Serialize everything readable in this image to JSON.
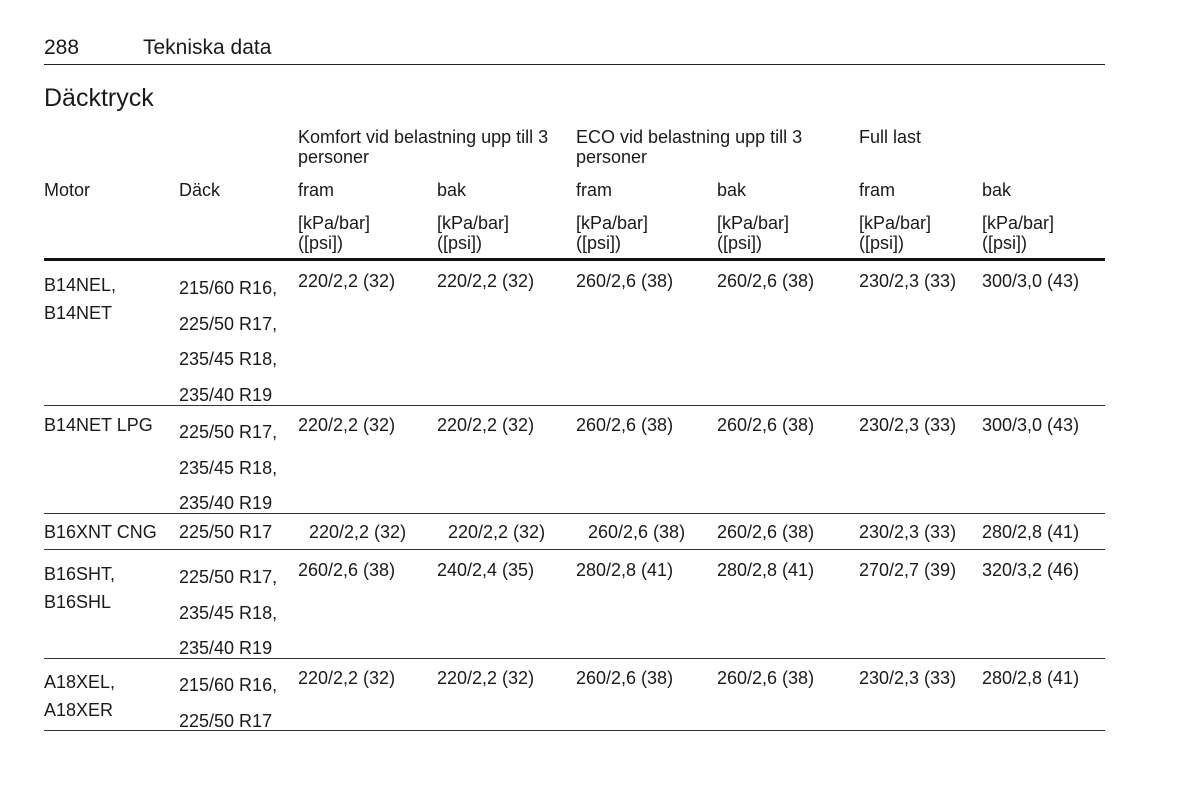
{
  "page": {
    "number": "288",
    "section": "Tekniska data"
  },
  "title": "Däcktryck",
  "table": {
    "groups": [
      "Komfort vid belastning upp till 3 personer",
      "ECO vid belastning upp till 3 personer",
      "Full last"
    ],
    "col_motor": "Motor",
    "col_tyre": "Däck",
    "front": "fram",
    "rear": "bak",
    "unit_line1": "[kPa/bar]",
    "unit_line2": "([psi])",
    "rows": [
      {
        "motor": [
          "B14NEL,",
          "B14NET"
        ],
        "tyres": [
          "215/60 R16,",
          "225/50 R17,",
          "235/45 R18,",
          "235/40 R19"
        ],
        "values": [
          "220/2,2 (32)",
          "220/2,2 (32)",
          "260/2,6 (38)",
          "260/2,6 (38)",
          "230/2,3 (33)",
          "300/3,0 (43)"
        ]
      },
      {
        "motor": [
          "B14NET LPG"
        ],
        "tyres": [
          "225/50 R17,",
          "235/45 R18,",
          "235/40 R19"
        ],
        "values": [
          "220/2,2 (32)",
          "220/2,2 (32)",
          "260/2,6 (38)",
          "260/2,6 (38)",
          "230/2,3 (33)",
          "300/3,0 (43)"
        ]
      },
      {
        "motor": [
          "B16XNT CNG"
        ],
        "tyres": [
          "225/50 R17"
        ],
        "values": [
          "220/2,2 (32)",
          "220/2,2 (32)",
          "260/2,6 (38)",
          "260/2,6 (38)",
          "230/2,3 (33)",
          "280/2,8 (41)"
        ]
      },
      {
        "motor": [
          "B16SHT,",
          "B16SHL"
        ],
        "tyres": [
          "225/50 R17,",
          "235/45 R18,",
          "235/40 R19"
        ],
        "values": [
          "260/2,6 (38)",
          "240/2,4 (35)",
          "280/2,8 (41)",
          "280/2,8 (41)",
          "270/2,7 (39)",
          "320/3,2 (46)"
        ]
      },
      {
        "motor": [
          "A18XEL,",
          "A18XER"
        ],
        "tyres": [
          "215/60 R16,",
          "225/50 R17"
        ],
        "values": [
          "220/2,2 (32)",
          "220/2,2 (32)",
          "260/2,6 (38)",
          "260/2,6 (38)",
          "230/2,3 (33)",
          "280/2,8 (41)"
        ]
      }
    ]
  }
}
